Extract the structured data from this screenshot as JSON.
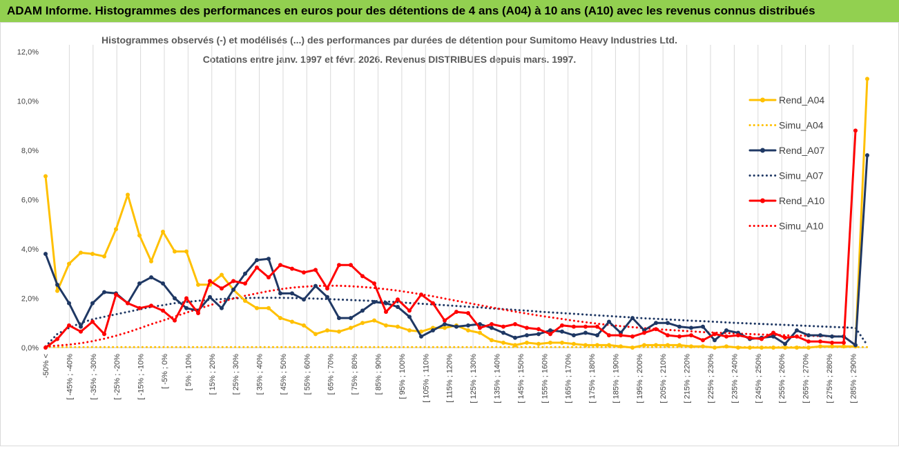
{
  "header": {
    "title": "ADAM Informe. Histogrammes des performances en euros pour des détentions de 4 ans (A04) à 10 ans (A10) avec les revenus connus distribués"
  },
  "chart_data": {
    "type": "line",
    "title_line1": "Histogrammes observés (-)  et modélisés (...) des performances par durées de détention pour Sumitomo Heavy Industries Ltd.",
    "title_line2": "Cotations entre janv. 1997 et févr. 2026. Revenus DISTRIBUES depuis mars. 1997.",
    "ylim": [
      0,
      12
    ],
    "yticks": [
      0,
      2,
      4,
      6,
      8,
      10,
      12
    ],
    "ytick_labels": [
      "0,0%",
      "2,0%",
      "4,0%",
      "6,0%",
      "8,0%",
      "10,0%",
      "12,0%"
    ],
    "grid": "vertical",
    "legend_position": "right",
    "tick_labels": [
      "-50% <",
      "[ -45% ; -40%",
      "[ -35% ; -30%",
      "[ -25% ; -20%",
      "[ -15% ; -10%",
      "[ -5% ; 0%",
      "[ 5% ; 10%",
      "[ 15% ; 20%",
      "[ 25% ; 30%",
      "[ 35% ; 40%",
      "[ 45% ; 50%",
      "[ 55% ; 60%",
      "[ 65% ; 70%",
      "[ 75% ; 80%",
      "[ 85% ; 90%",
      "[ 95% ; 100%",
      "[ 105% ; 110%",
      "[ 115% ; 120%",
      "[ 125% ; 130%",
      "[ 135% ; 140%",
      "[ 145% ; 150%",
      "[ 155% ; 160%",
      "[ 165% ; 170%",
      "[ 175% ; 180%",
      "[ 185% ; 190%",
      "[ 195% ; 200%",
      "[ 205% ; 210%",
      "[ 215% ; 220%",
      "[ 225% ; 230%",
      "[ 235% ; 240%",
      "[ 245% ; 250%",
      "[ 255% ; 260%",
      "[ 265% ; 270%",
      "[ 275% ; 280%",
      "[ 285% ; 290%"
    ],
    "series": [
      {
        "name": "Rend_A04",
        "style": "solid",
        "color": "#ffc000",
        "values": [
          6.95,
          2.3,
          3.4,
          3.85,
          3.8,
          3.7,
          4.8,
          6.2,
          4.55,
          3.5,
          4.7,
          3.9,
          3.9,
          2.55,
          2.55,
          2.95,
          2.35,
          1.9,
          1.6,
          1.6,
          1.2,
          1.05,
          0.9,
          0.55,
          0.7,
          0.65,
          0.8,
          1.0,
          1.1,
          0.9,
          0.85,
          0.7,
          0.65,
          0.8,
          0.8,
          0.9,
          0.7,
          0.6,
          0.3,
          0.2,
          0.1,
          0.2,
          0.15,
          0.2,
          0.2,
          0.15,
          0.1,
          0.1,
          0.1,
          0.05,
          0.0,
          0.1,
          0.1,
          0.1,
          0.1,
          0.05,
          0.05,
          0.0,
          0.05,
          0.0,
          0.0,
          0.0,
          0.0,
          0.0,
          0.0,
          0.0,
          0.05,
          0.05,
          0.05,
          0.05,
          10.9
        ]
      },
      {
        "name": "Simu_A04",
        "style": "dotted",
        "color": "#ffc000",
        "values": [
          0.02,
          0.02,
          0.02,
          0.02,
          0.02,
          0.02,
          0.02,
          0.02,
          0.02,
          0.02,
          0.02,
          0.02,
          0.02,
          0.02,
          0.02,
          0.02,
          0.02,
          0.02,
          0.02,
          0.02,
          0.02,
          0.02,
          0.02,
          0.02,
          0.02,
          0.02,
          0.02,
          0.02,
          0.02,
          0.02,
          0.02,
          0.02,
          0.02,
          0.02,
          0.02,
          0.02,
          0.02,
          0.02,
          0.02,
          0.02,
          0.02,
          0.02,
          0.02,
          0.02,
          0.02,
          0.02,
          0.02,
          0.02,
          0.02,
          0.02,
          0.02,
          0.02,
          0.02,
          0.02,
          0.02,
          0.02,
          0.02,
          0.02,
          0.02,
          0.02,
          0.02,
          0.02,
          0.02,
          0.02,
          0.02,
          0.02,
          0.02,
          0.02,
          0.02,
          0.02,
          0.02
        ]
      },
      {
        "name": "Rend_A07",
        "style": "solid",
        "color": "#1f3864",
        "values": [
          3.8,
          2.55,
          1.8,
          0.85,
          1.8,
          2.25,
          2.2,
          1.8,
          2.6,
          2.85,
          2.6,
          2.0,
          1.6,
          1.5,
          2.05,
          1.6,
          2.35,
          3.0,
          3.55,
          3.6,
          2.2,
          2.2,
          1.95,
          2.5,
          2.05,
          1.2,
          1.2,
          1.5,
          1.85,
          1.8,
          1.65,
          1.25,
          0.45,
          0.7,
          0.95,
          0.85,
          0.9,
          0.95,
          0.8,
          0.6,
          0.4,
          0.5,
          0.55,
          0.7,
          0.65,
          0.5,
          0.6,
          0.5,
          1.05,
          0.6,
          1.2,
          0.7,
          1.0,
          1.0,
          0.85,
          0.8,
          0.85,
          0.3,
          0.7,
          0.6,
          0.35,
          0.4,
          0.45,
          0.15,
          0.7,
          0.5,
          0.5,
          0.45,
          0.45,
          0.1,
          7.8
        ]
      },
      {
        "name": "Simu_A07",
        "style": "dotted",
        "color": "#1f3864",
        "values": [
          0.05,
          0.55,
          0.8,
          1.0,
          1.15,
          1.25,
          1.35,
          1.45,
          1.55,
          1.65,
          1.72,
          1.8,
          1.85,
          1.9,
          1.94,
          1.97,
          2.0,
          2.01,
          2.02,
          2.02,
          2.02,
          2.01,
          2.0,
          1.99,
          1.97,
          1.95,
          1.93,
          1.91,
          1.89,
          1.87,
          1.84,
          1.81,
          1.78,
          1.75,
          1.72,
          1.69,
          1.66,
          1.63,
          1.59,
          1.56,
          1.53,
          1.5,
          1.46,
          1.43,
          1.4,
          1.37,
          1.34,
          1.31,
          1.28,
          1.25,
          1.22,
          1.19,
          1.17,
          1.14,
          1.12,
          1.09,
          1.07,
          1.05,
          1.02,
          1.0,
          0.98,
          0.96,
          0.94,
          0.92,
          0.9,
          0.88,
          0.86,
          0.84,
          0.82,
          0.8,
          0.1
        ]
      },
      {
        "name": "Rend_A10",
        "style": "solid",
        "color": "#ff0000",
        "values": [
          0.0,
          0.35,
          0.9,
          0.65,
          1.05,
          0.55,
          2.15,
          1.8,
          1.6,
          1.7,
          1.5,
          1.1,
          2.0,
          1.4,
          2.7,
          2.4,
          2.7,
          2.6,
          3.25,
          2.85,
          3.35,
          3.2,
          3.05,
          3.15,
          2.4,
          3.35,
          3.35,
          2.9,
          2.6,
          1.45,
          1.95,
          1.5,
          2.15,
          1.8,
          1.1,
          1.45,
          1.4,
          0.8,
          0.95,
          0.85,
          0.95,
          0.8,
          0.75,
          0.55,
          0.9,
          0.85,
          0.85,
          0.85,
          0.5,
          0.5,
          0.45,
          0.6,
          0.75,
          0.5,
          0.45,
          0.5,
          0.3,
          0.55,
          0.45,
          0.5,
          0.4,
          0.35,
          0.6,
          0.4,
          0.45,
          0.25,
          0.25,
          0.2,
          0.2,
          8.8
        ]
      },
      {
        "name": "Simu_A10",
        "style": "dotted",
        "color": "#ff0000",
        "values": [
          0.05,
          0.08,
          0.12,
          0.18,
          0.26,
          0.36,
          0.48,
          0.62,
          0.78,
          0.95,
          1.1,
          1.26,
          1.42,
          1.57,
          1.72,
          1.86,
          1.99,
          2.1,
          2.2,
          2.29,
          2.37,
          2.43,
          2.47,
          2.5,
          2.51,
          2.51,
          2.49,
          2.46,
          2.42,
          2.37,
          2.31,
          2.24,
          2.16,
          2.08,
          1.99,
          1.9,
          1.81,
          1.72,
          1.63,
          1.54,
          1.46,
          1.38,
          1.3,
          1.23,
          1.16,
          1.09,
          1.03,
          0.97,
          0.92,
          0.87,
          0.83,
          0.79,
          0.75,
          0.72,
          0.69,
          0.66,
          0.63,
          0.61,
          0.59,
          0.57,
          0.55,
          0.53,
          0.52,
          0.5,
          0.49,
          0.48,
          0.47,
          0.46,
          0.45,
          0.1
        ]
      }
    ]
  }
}
